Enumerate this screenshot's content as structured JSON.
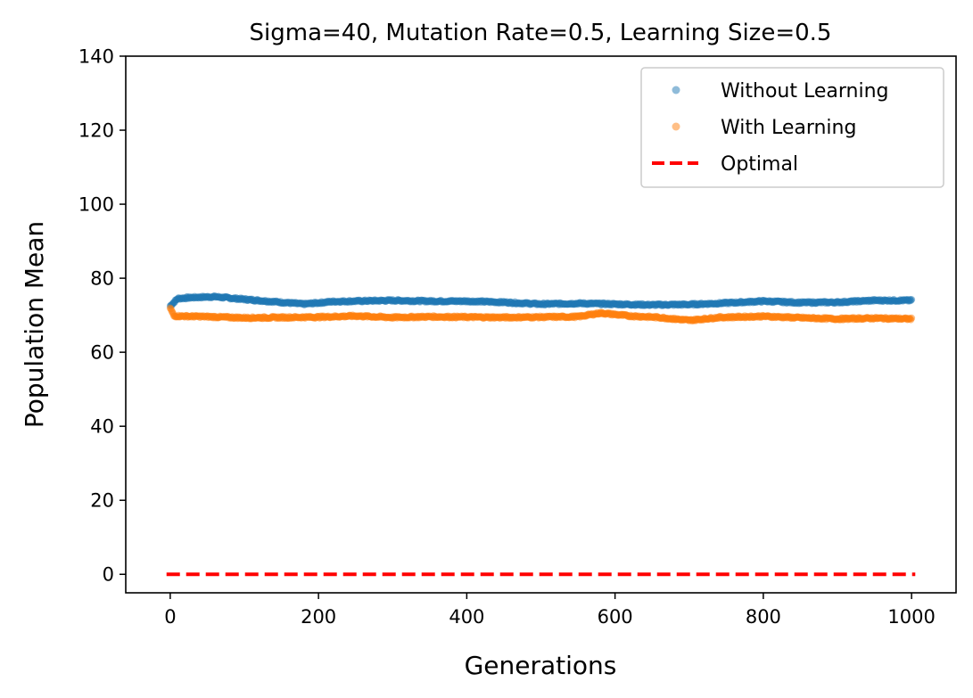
{
  "chart_data": {
    "type": "scatter",
    "title": "Sigma=40, Mutation Rate=0.5, Learning Size=0.5",
    "xlabel": "Generations",
    "ylabel": "Population Mean",
    "xlim": [
      -60,
      1060
    ],
    "ylim": [
      -5,
      140
    ],
    "xticks": [
      0,
      200,
      400,
      600,
      800,
      1000
    ],
    "yticks": [
      0,
      20,
      40,
      60,
      80,
      100,
      120,
      140
    ],
    "xtick_labels": [
      "0",
      "200",
      "400",
      "600",
      "800",
      "1000"
    ],
    "ytick_labels": [
      "0",
      "20",
      "40",
      "60",
      "80",
      "100",
      "120",
      "140"
    ],
    "grid": false,
    "legend_position": "top-right",
    "series": [
      {
        "name": "Without Learning",
        "kind": "points",
        "color": "#1f77b4",
        "keypoints": [
          [
            0,
            72.5
          ],
          [
            10,
            74.5
          ],
          [
            30,
            74.8
          ],
          [
            60,
            75.0
          ],
          [
            100,
            74.3
          ],
          [
            150,
            73.5
          ],
          [
            180,
            73.0
          ],
          [
            220,
            73.7
          ],
          [
            300,
            74.0
          ],
          [
            350,
            73.8
          ],
          [
            400,
            73.8
          ],
          [
            450,
            73.5
          ],
          [
            500,
            73.0
          ],
          [
            550,
            73.2
          ],
          [
            600,
            73.0
          ],
          [
            650,
            72.8
          ],
          [
            700,
            72.9
          ],
          [
            750,
            73.3
          ],
          [
            800,
            73.8
          ],
          [
            850,
            73.4
          ],
          [
            900,
            73.5
          ],
          [
            950,
            74.0
          ],
          [
            1000,
            74.0
          ]
        ]
      },
      {
        "name": "With Learning",
        "kind": "points",
        "color": "#ff7f0e",
        "keypoints": [
          [
            0,
            72.0
          ],
          [
            5,
            69.8
          ],
          [
            50,
            69.6
          ],
          [
            100,
            69.3
          ],
          [
            150,
            69.4
          ],
          [
            200,
            69.5
          ],
          [
            250,
            69.8
          ],
          [
            300,
            69.4
          ],
          [
            350,
            69.6
          ],
          [
            400,
            69.5
          ],
          [
            450,
            69.4
          ],
          [
            500,
            69.5
          ],
          [
            550,
            69.6
          ],
          [
            580,
            70.6
          ],
          [
            620,
            69.8
          ],
          [
            660,
            69.4
          ],
          [
            700,
            68.6
          ],
          [
            740,
            69.4
          ],
          [
            800,
            69.7
          ],
          [
            850,
            69.3
          ],
          [
            900,
            69.0
          ],
          [
            950,
            69.2
          ],
          [
            1000,
            69.0
          ]
        ]
      },
      {
        "name": "Optimal",
        "kind": "dashed-line",
        "color": "#ff0000",
        "x": [
          -5,
          1005
        ],
        "values": [
          0,
          0
        ]
      }
    ]
  }
}
